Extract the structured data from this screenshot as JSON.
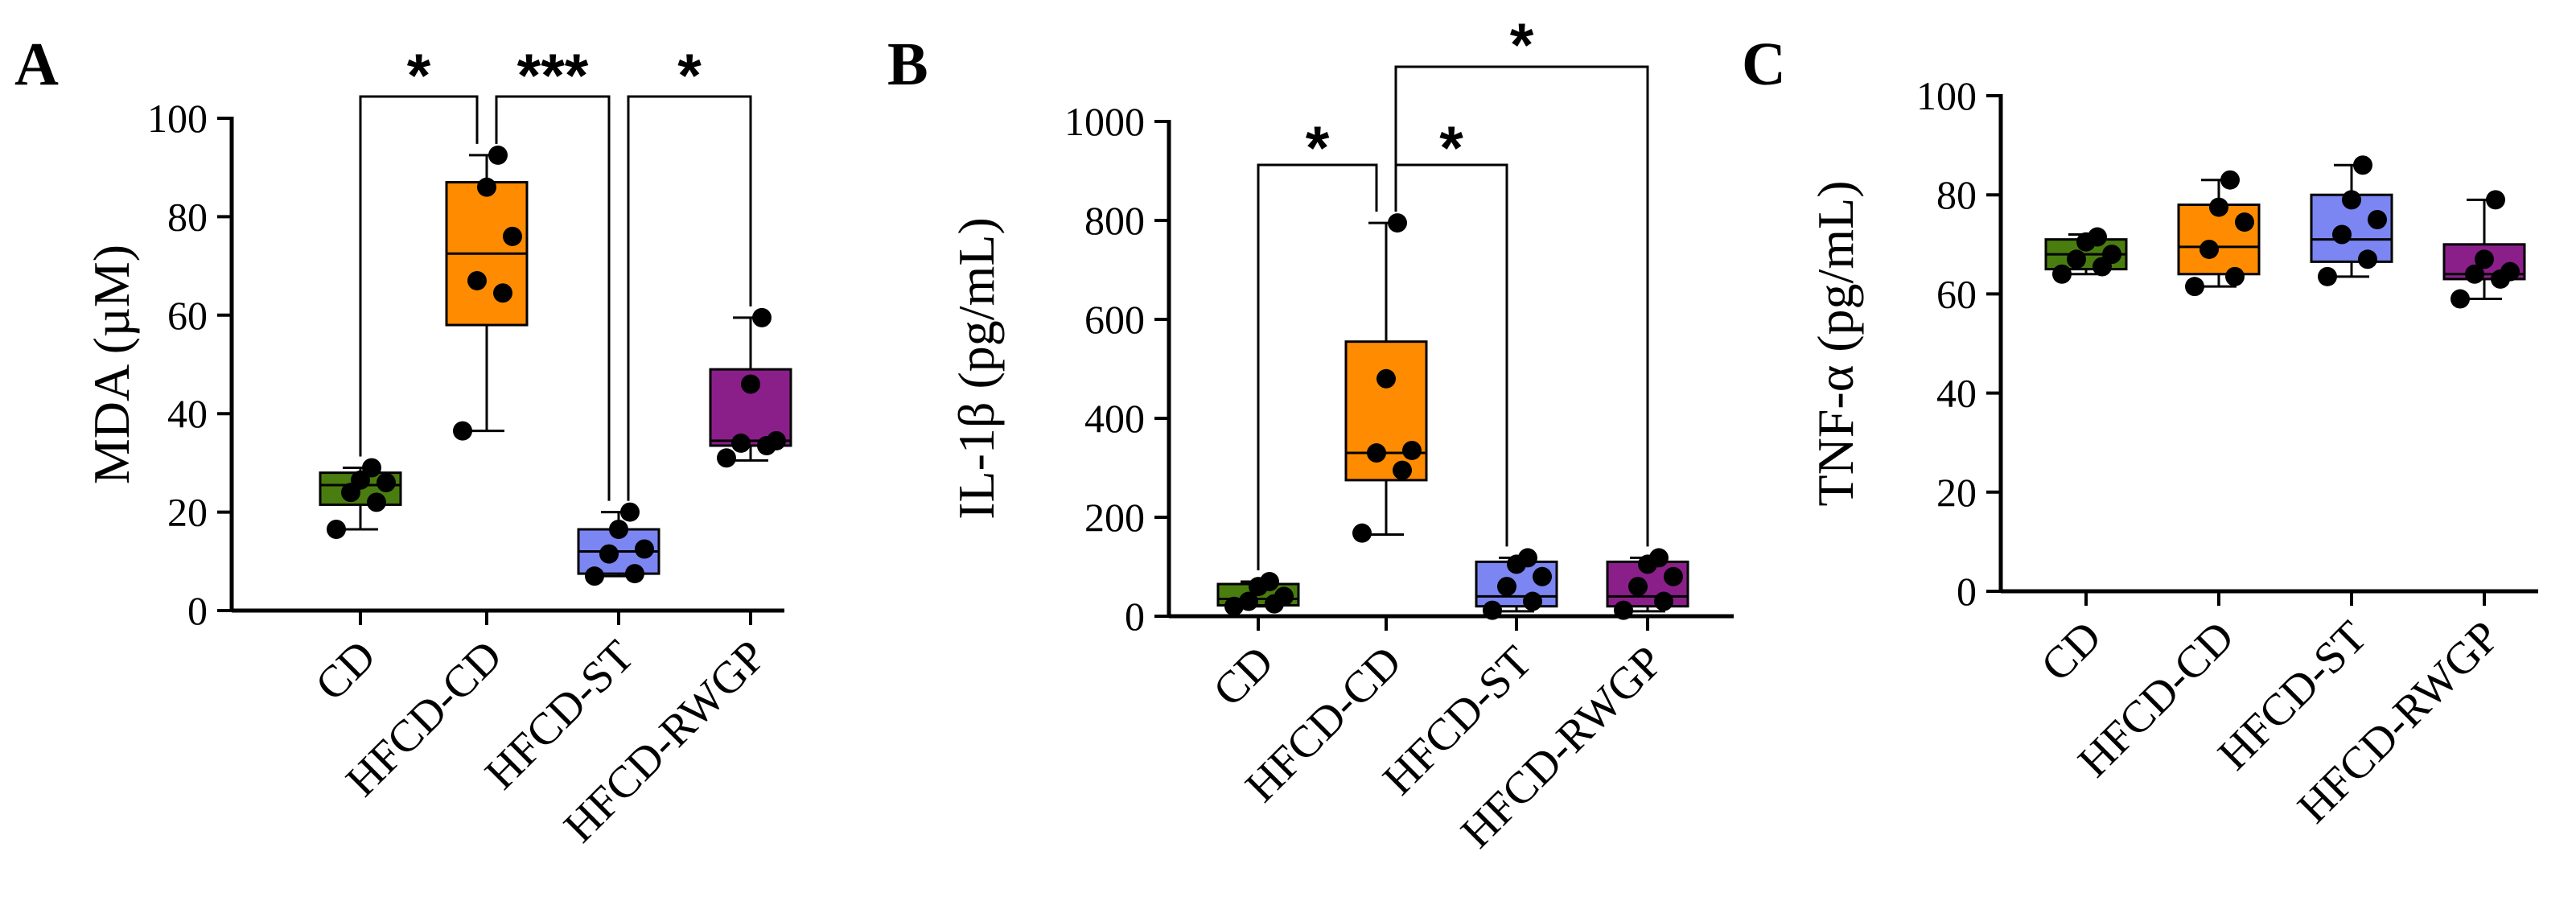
{
  "colors": {
    "CD": "#4a7d0f",
    "HFCD-CD": "#ff8c00",
    "HFCD-ST": "#7b86f2",
    "HFCD-RWGP": "#8b1f8a"
  },
  "chart_data": [
    {
      "panel": "A",
      "type": "box",
      "ylabel": "MDA (µM)",
      "ylim": [
        0,
        100
      ],
      "yticks": [
        0,
        20,
        40,
        60,
        80,
        100
      ],
      "categories": [
        "CD",
        "HFCD-CD",
        "HFCD-ST",
        "HFCD-RWGP"
      ],
      "boxes": [
        {
          "min": 16.5,
          "q1": 21.5,
          "median": 25.5,
          "q3": 28,
          "max": 29,
          "points": [
            16.5,
            22,
            24,
            26,
            26.5,
            29
          ]
        },
        {
          "min": 36.5,
          "q1": 58,
          "median": 72.5,
          "q3": 87,
          "max": 92.5,
          "points": [
            36.5,
            64.5,
            67,
            76,
            86,
            92.5
          ]
        },
        {
          "min": 7,
          "q1": 7.5,
          "median": 12,
          "q3": 16.5,
          "max": 20,
          "points": [
            7,
            7.5,
            11.5,
            12.5,
            16.5,
            20
          ]
        },
        {
          "min": 30.5,
          "q1": 33.5,
          "median": 34.5,
          "q3": 49,
          "max": 59.5,
          "points": [
            31,
            33.5,
            34,
            34.5,
            46,
            59.5
          ]
        }
      ],
      "comparisons": [
        {
          "from": 0,
          "to": 1,
          "label": "*"
        },
        {
          "from": 1,
          "to": 2,
          "label": "***"
        },
        {
          "from": 2,
          "to": 3,
          "label": "*"
        }
      ]
    },
    {
      "panel": "B",
      "type": "box",
      "ylabel": "IL-1β (pg/mL)",
      "ylim": [
        0,
        1000
      ],
      "yticks": [
        0,
        200,
        400,
        600,
        800,
        1000
      ],
      "categories": [
        "CD",
        "HFCD-CD",
        "HFCD-ST",
        "HFCD-RWGP"
      ],
      "boxes": [
        {
          "min": 20,
          "q1": 22,
          "median": 35,
          "q3": 65,
          "max": 70,
          "points": [
            20,
            25,
            30,
            40,
            60,
            70
          ]
        },
        {
          "min": 165,
          "q1": 275,
          "median": 330,
          "q3": 555,
          "max": 795,
          "points": [
            168,
            295,
            330,
            335,
            480,
            795
          ]
        },
        {
          "min": 10,
          "q1": 20,
          "median": 40,
          "q3": 110,
          "max": 118,
          "points": [
            12,
            30,
            60,
            80,
            105,
            118
          ]
        },
        {
          "min": 10,
          "q1": 20,
          "median": 40,
          "q3": 110,
          "max": 118,
          "points": [
            12,
            30,
            60,
            80,
            105,
            118
          ]
        }
      ],
      "comparisons": [
        {
          "from": 0,
          "to": 1,
          "label": "*"
        },
        {
          "from": 1,
          "to": 2,
          "label": "*"
        },
        {
          "from": 1,
          "to": 3,
          "label": "*"
        }
      ]
    },
    {
      "panel": "C",
      "type": "box",
      "ylabel": "TNF-α (pg/mL)",
      "ylim": [
        0,
        100
      ],
      "yticks": [
        0,
        20,
        40,
        60,
        80,
        100
      ],
      "categories": [
        "CD",
        "HFCD-CD",
        "HFCD-ST",
        "HFCD-RWGP"
      ],
      "boxes": [
        {
          "min": 64,
          "q1": 65,
          "median": 68,
          "q3": 71,
          "max": 72,
          "points": [
            64,
            65.5,
            67,
            68,
            70.5,
            71.5
          ]
        },
        {
          "min": 61.5,
          "q1": 64,
          "median": 69.5,
          "q3": 78,
          "max": 83,
          "points": [
            61.5,
            63.5,
            69,
            74.5,
            77.5,
            83
          ]
        },
        {
          "min": 63.5,
          "q1": 66.5,
          "median": 71,
          "q3": 80,
          "max": 86,
          "points": [
            63.5,
            67,
            72,
            75,
            79,
            86
          ]
        },
        {
          "min": 59,
          "q1": 63,
          "median": 64,
          "q3": 70,
          "max": 79,
          "points": [
            59,
            63,
            64,
            64.5,
            67,
            79
          ]
        }
      ],
      "comparisons": []
    }
  ]
}
